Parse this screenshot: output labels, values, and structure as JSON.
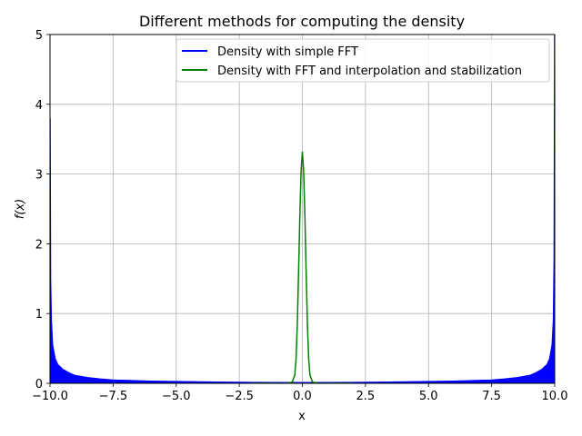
{
  "chart_data": {
    "type": "line",
    "title": "Different methods for computing the density",
    "xlabel": "x",
    "ylabel": "f(x)",
    "xlim": [
      -10,
      10
    ],
    "ylim": [
      0,
      5
    ],
    "grid": true,
    "legend_position": "top-right",
    "x_ticks": [
      -10,
      -7.5,
      -5,
      -2.5,
      0,
      2.5,
      5,
      7.5,
      10
    ],
    "x_tick_labels": [
      "−10.0",
      "−7.5",
      "−5.0",
      "−2.5",
      "0.0",
      "2.5",
      "5.0",
      "7.5",
      "10.0"
    ],
    "y_ticks": [
      0,
      1,
      2,
      3,
      4,
      5
    ],
    "y_tick_labels": [
      "0",
      "1",
      "2",
      "3",
      "4",
      "5"
    ],
    "series": [
      {
        "name": "Density with simple FFT",
        "color": "#0000ff",
        "x": [
          -10,
          -9.98,
          -9.95,
          -9.9,
          -9.8,
          -9.7,
          -9.5,
          -9.2,
          -9.0,
          -8.5,
          -8.0,
          -7.5,
          -7.0,
          -6.0,
          -5.0,
          -4.0,
          -3.0,
          -2.0,
          -1.0,
          0,
          1.0,
          2.0,
          3.0,
          4.0,
          5.0,
          6.0,
          7.0,
          7.5,
          8.0,
          8.5,
          9.0,
          9.2,
          9.5,
          9.7,
          9.8,
          9.9,
          9.95,
          9.98,
          10
        ],
        "values": [
          3.8,
          1.5,
          0.9,
          0.55,
          0.35,
          0.27,
          0.2,
          0.14,
          0.11,
          0.08,
          0.06,
          0.045,
          0.04,
          0.03,
          0.025,
          0.02,
          0.015,
          0.012,
          0.01,
          0.01,
          0.01,
          0.012,
          0.015,
          0.02,
          0.025,
          0.03,
          0.04,
          0.045,
          0.06,
          0.08,
          0.11,
          0.14,
          0.2,
          0.27,
          0.35,
          0.55,
          0.9,
          1.8,
          5.0
        ]
      },
      {
        "name": "Density with FFT and interpolation and stabilization",
        "color": "#008000",
        "x": [
          -2.0,
          -0.6,
          -0.4,
          -0.3,
          -0.25,
          -0.2,
          -0.15,
          -0.1,
          -0.05,
          0,
          0.05,
          0.1,
          0.15,
          0.2,
          0.25,
          0.3,
          0.4,
          0.6,
          2.0
        ],
        "values": [
          0,
          0,
          0.02,
          0.12,
          0.35,
          0.85,
          1.6,
          2.4,
          3.05,
          3.32,
          3.05,
          2.4,
          1.6,
          0.85,
          0.35,
          0.12,
          0.02,
          0,
          0
        ]
      }
    ]
  }
}
